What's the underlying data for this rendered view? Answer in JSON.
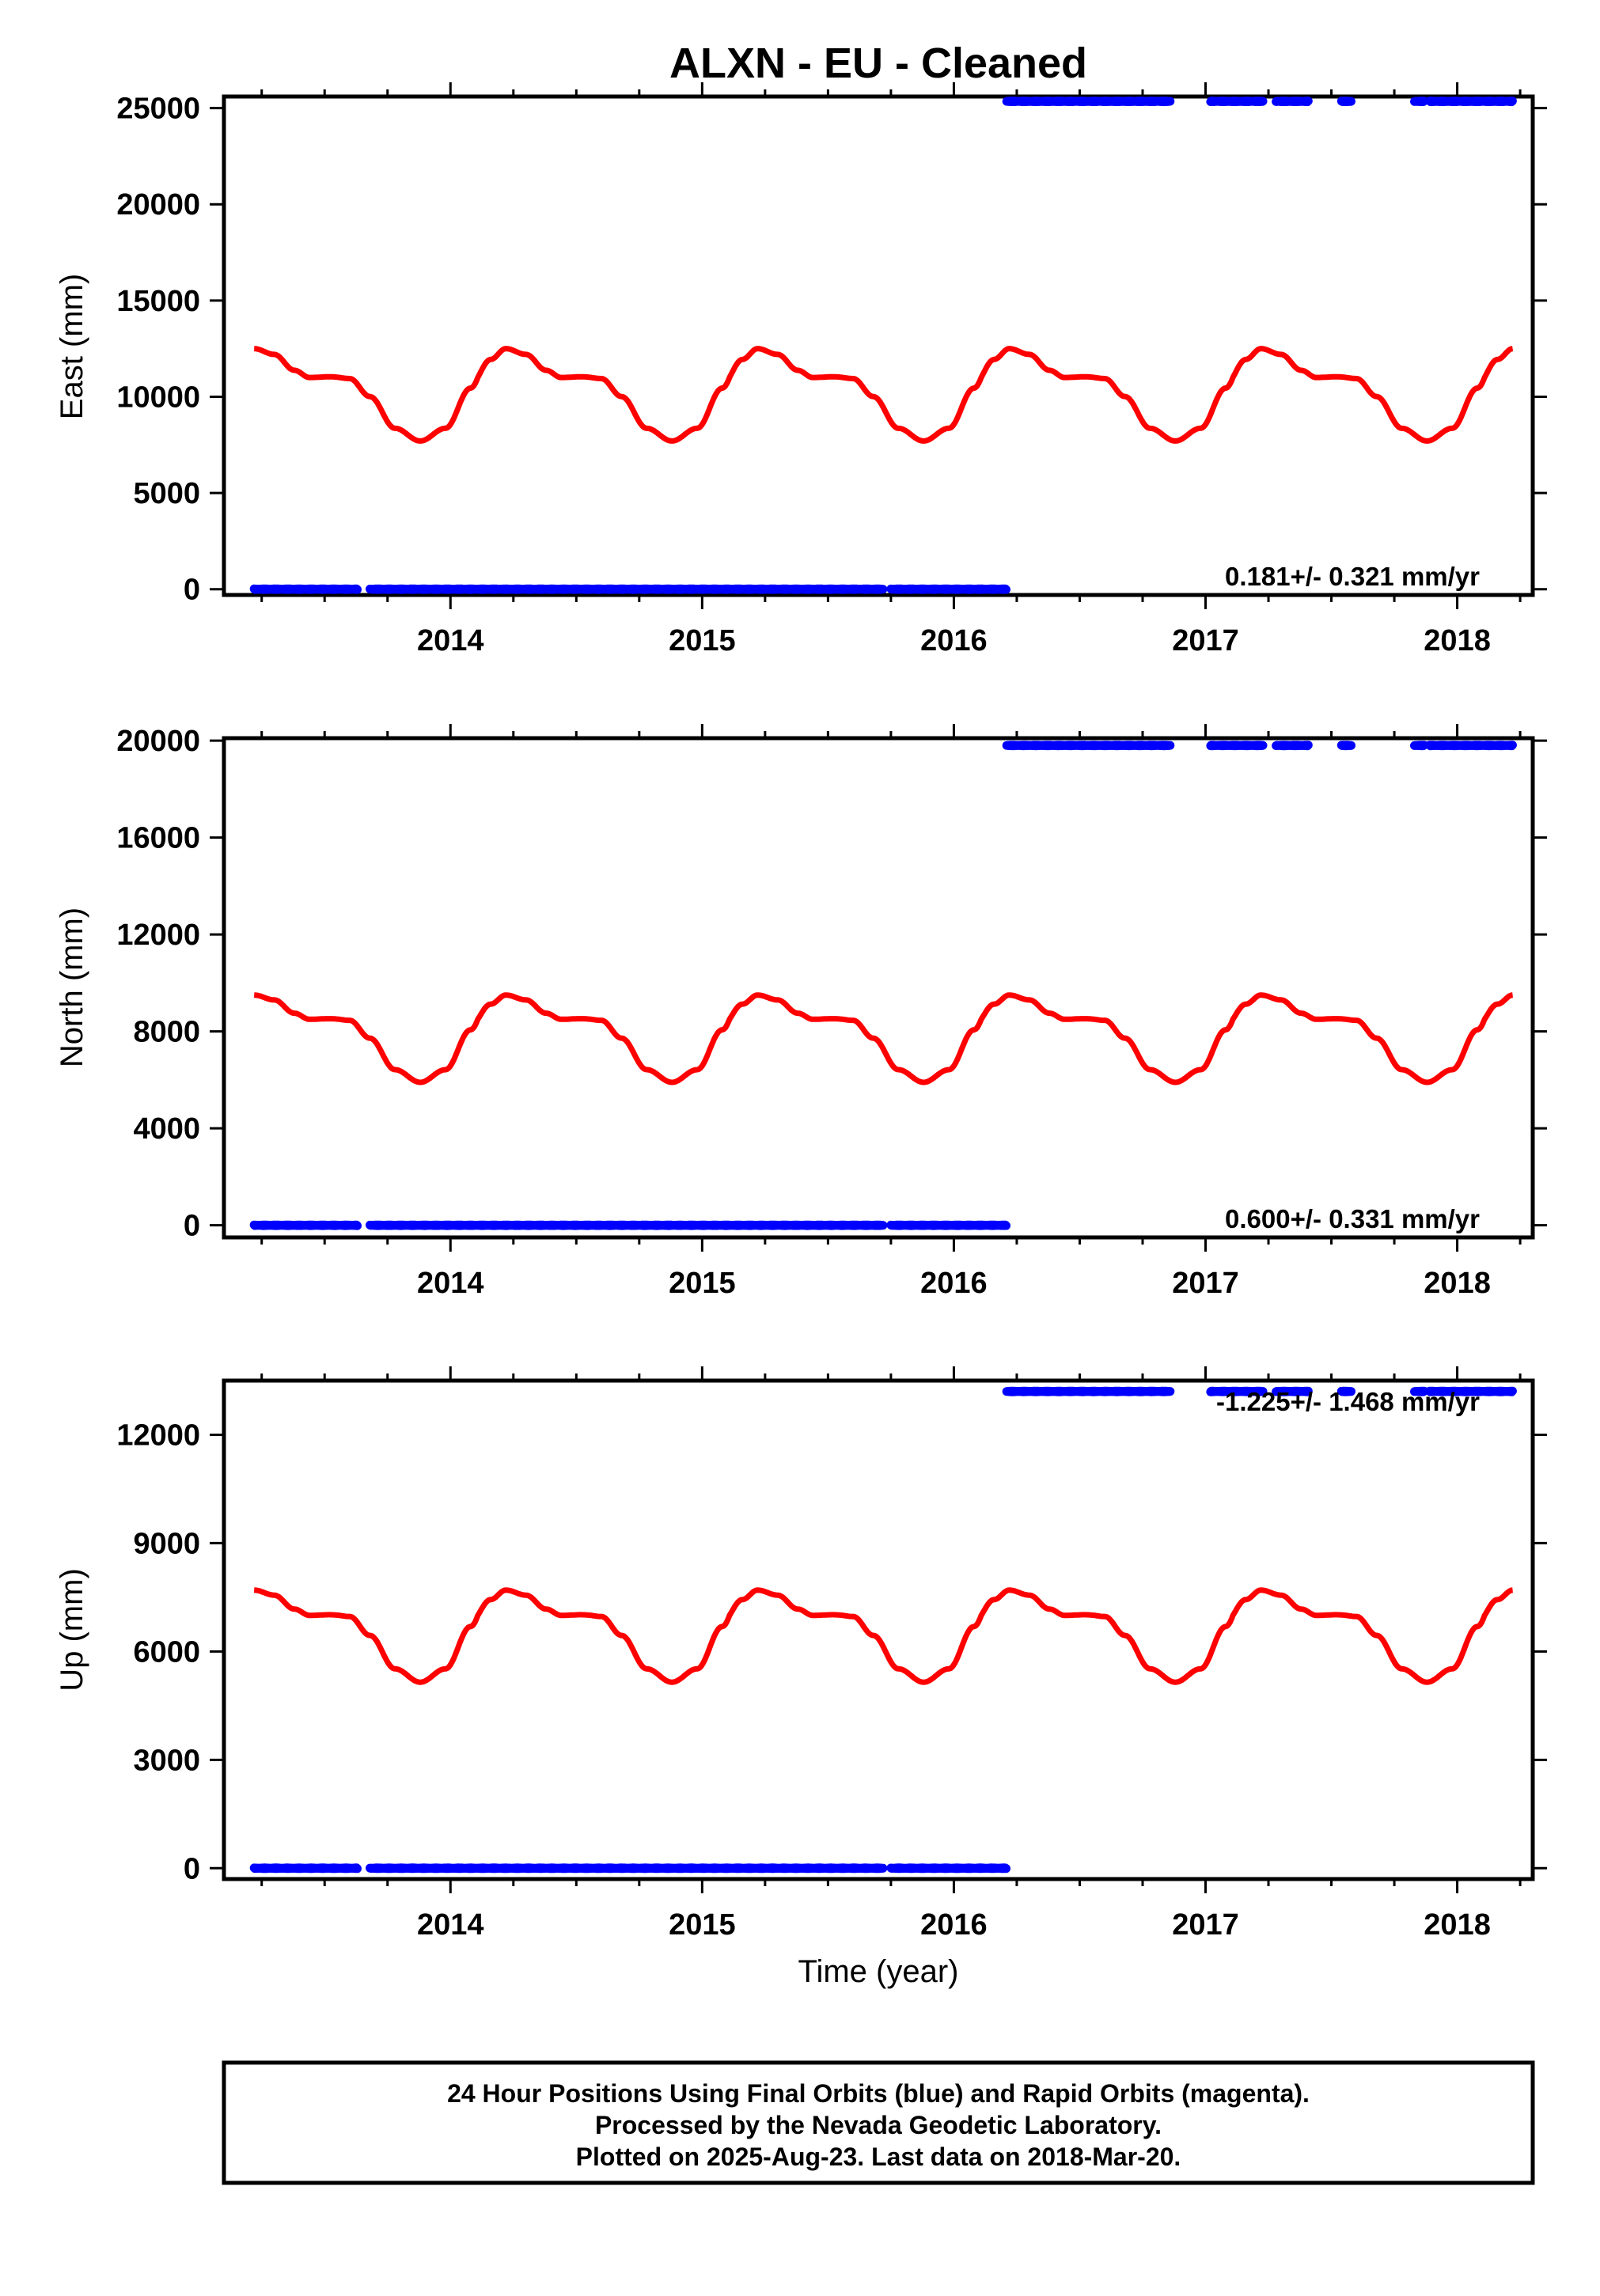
{
  "title": "ALXN  - EU - Cleaned",
  "footer": {
    "line1": "24 Hour Positions Using Final Orbits (blue) and Rapid Orbits (magenta).",
    "line2": "Processed by the Nevada Geodetic Laboratory.",
    "line3": "Plotted on 2025-Aug-23. Last data on 2018-Mar-20."
  },
  "colors": {
    "data": "#0000ff",
    "model": "#ff0000",
    "axes": "#000000"
  },
  "chart_data": [
    {
      "type": "scatter",
      "ylabel": "East (mm)",
      "xlabel": "",
      "xlim": [
        2013.1,
        2018.3
      ],
      "ylim": [
        -300,
        25600
      ],
      "xticks": [
        "2014",
        "2015",
        "2016",
        "2017",
        "2018"
      ],
      "yticks": [
        "0",
        "5000",
        "10000",
        "15000",
        "20000",
        "25000"
      ],
      "rate_label": "0.181+/- 0.321 mm/yr",
      "data_points": {
        "color": "blue",
        "segments": [
          {
            "x_start": 2013.22,
            "x_end": 2013.63,
            "y": 0
          },
          {
            "x_start": 2013.68,
            "x_end": 2015.72,
            "y": 0
          },
          {
            "x_start": 2015.75,
            "x_end": 2016.21,
            "y": 0
          },
          {
            "x_start": 2016.21,
            "x_end": 2016.86,
            "y": 25350
          },
          {
            "x_start": 2017.02,
            "x_end": 2017.23,
            "y": 25350
          },
          {
            "x_start": 2017.28,
            "x_end": 2017.41,
            "y": 25350
          },
          {
            "x_start": 2017.54,
            "x_end": 2017.58,
            "y": 25350
          },
          {
            "x_start": 2017.83,
            "x_end": 2017.87,
            "y": 25350
          },
          {
            "x_start": 2017.89,
            "x_end": 2018.22,
            "y": 25350
          }
        ]
      },
      "model_curve": {
        "color": "red",
        "x_range": [
          2013.22,
          2018.22
        ],
        "max": 12500,
        "shoulder": 11000,
        "min": 7700,
        "period_years": 1
      }
    },
    {
      "type": "scatter",
      "ylabel": "North (mm)",
      "xlabel": "",
      "xlim": [
        2013.1,
        2018.3
      ],
      "ylim": [
        -500,
        20100
      ],
      "xticks": [
        "2014",
        "2015",
        "2016",
        "2017",
        "2018"
      ],
      "yticks": [
        "0",
        "4000",
        "8000",
        "12000",
        "16000",
        "20000"
      ],
      "rate_label": "0.600+/- 0.331 mm/yr",
      "data_points": {
        "color": "blue",
        "segments": [
          {
            "x_start": 2013.22,
            "x_end": 2013.63,
            "y": 0
          },
          {
            "x_start": 2013.68,
            "x_end": 2015.72,
            "y": 0
          },
          {
            "x_start": 2015.75,
            "x_end": 2016.21,
            "y": 0
          },
          {
            "x_start": 2016.21,
            "x_end": 2016.86,
            "y": 19800
          },
          {
            "x_start": 2017.02,
            "x_end": 2017.23,
            "y": 19800
          },
          {
            "x_start": 2017.28,
            "x_end": 2017.41,
            "y": 19800
          },
          {
            "x_start": 2017.54,
            "x_end": 2017.58,
            "y": 19800
          },
          {
            "x_start": 2017.83,
            "x_end": 2017.87,
            "y": 19800
          },
          {
            "x_start": 2017.89,
            "x_end": 2018.22,
            "y": 19800
          }
        ]
      },
      "model_curve": {
        "color": "red",
        "x_range": [
          2013.22,
          2018.22
        ],
        "max": 9500,
        "shoulder": 8500,
        "min": 5900,
        "period_years": 1
      }
    },
    {
      "type": "scatter",
      "ylabel": "Up (mm)",
      "xlabel": "Time (year)",
      "xlim": [
        2013.1,
        2018.3
      ],
      "ylim": [
        -300,
        13500
      ],
      "xticks": [
        "2014",
        "2015",
        "2016",
        "2017",
        "2018"
      ],
      "yticks": [
        "0",
        "3000",
        "6000",
        "9000",
        "12000"
      ],
      "rate_label": "-1.225+/- 1.468 mm/yr",
      "data_points": {
        "color": "blue",
        "segments": [
          {
            "x_start": 2013.22,
            "x_end": 2013.63,
            "y": 0
          },
          {
            "x_start": 2013.68,
            "x_end": 2015.72,
            "y": 0
          },
          {
            "x_start": 2015.75,
            "x_end": 2016.21,
            "y": 0
          },
          {
            "x_start": 2016.21,
            "x_end": 2016.86,
            "y": 13200
          },
          {
            "x_start": 2017.02,
            "x_end": 2017.23,
            "y": 13200
          },
          {
            "x_start": 2017.28,
            "x_end": 2017.41,
            "y": 13200
          },
          {
            "x_start": 2017.54,
            "x_end": 2017.58,
            "y": 13200
          },
          {
            "x_start": 2017.83,
            "x_end": 2017.87,
            "y": 13200
          },
          {
            "x_start": 2017.89,
            "x_end": 2018.22,
            "y": 13200
          }
        ]
      },
      "model_curve": {
        "color": "red",
        "x_range": [
          2013.22,
          2018.22
        ],
        "max": 7700,
        "shoulder": 7000,
        "min": 5150,
        "period_years": 1
      }
    }
  ]
}
